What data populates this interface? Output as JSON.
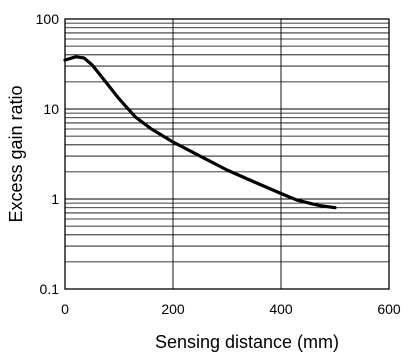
{
  "chart_data": {
    "type": "line",
    "title": "",
    "xlabel": "Sensing distance (mm)",
    "ylabel": "Excess gain ratio",
    "x_scale": "linear",
    "y_scale": "log",
    "xlim": [
      0,
      600
    ],
    "ylim": [
      0.1,
      100
    ],
    "x_ticks": [
      0,
      200,
      400,
      600
    ],
    "x_tick_labels": [
      "0",
      "200",
      "400",
      "600"
    ],
    "y_ticks": [
      0.1,
      1,
      10,
      100
    ],
    "y_tick_labels": [
      "0.1",
      "1",
      "10",
      "100"
    ],
    "grid": true,
    "legend": "none",
    "series": [
      {
        "x": [
          0,
          20,
          35,
          50,
          70,
          100,
          130,
          160,
          200,
          250,
          300,
          350,
          400,
          430,
          470,
          500
        ],
        "y": [
          35,
          38,
          37,
          31,
          22,
          13,
          8.2,
          6.0,
          4.3,
          3.0,
          2.1,
          1.55,
          1.15,
          0.97,
          0.85,
          0.8
        ],
        "color": "#000000"
      }
    ]
  }
}
